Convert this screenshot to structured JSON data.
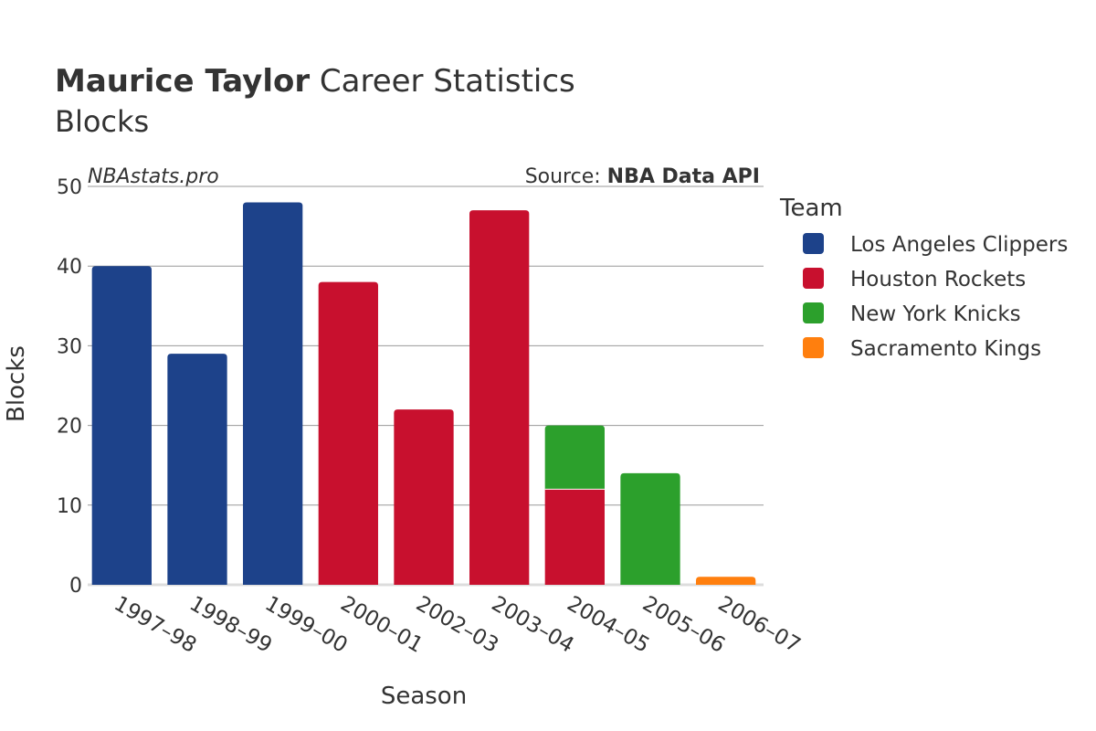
{
  "chart_data": {
    "type": "bar",
    "stacked": true,
    "title_player": "Maurice Taylor",
    "title_rest": " Career Statistics",
    "subtitle": "Blocks",
    "watermark": "NBAstats.pro",
    "source_label": "Source: ",
    "source_name": "NBA Data API",
    "xlabel": "Season",
    "ylabel": "Blocks",
    "ylim": [
      0,
      50
    ],
    "yticks": [
      0,
      10,
      20,
      30,
      40,
      50
    ],
    "grid": true,
    "legend_title": "Team",
    "legend_placement": "right",
    "categories": [
      "1997–98",
      "1998–99",
      "1999–00",
      "2000–01",
      "2002–03",
      "2003–04",
      "2004–05",
      "2005–06",
      "2006–07"
    ],
    "series": [
      {
        "name": "Los Angeles Clippers",
        "color": "#1d428a",
        "values": [
          40,
          29,
          48,
          0,
          0,
          0,
          0,
          0,
          0
        ]
      },
      {
        "name": "Houston Rockets",
        "color": "#c8102e",
        "values": [
          0,
          0,
          0,
          38,
          22,
          47,
          12,
          0,
          0
        ]
      },
      {
        "name": "New York Knicks",
        "color": "#2ca02c",
        "values": [
          0,
          0,
          0,
          0,
          0,
          0,
          8,
          14,
          0
        ]
      },
      {
        "name": "Sacramento Kings",
        "color": "#ff7f0e",
        "values": [
          0,
          0,
          0,
          0,
          0,
          0,
          0,
          0,
          1
        ]
      }
    ]
  }
}
